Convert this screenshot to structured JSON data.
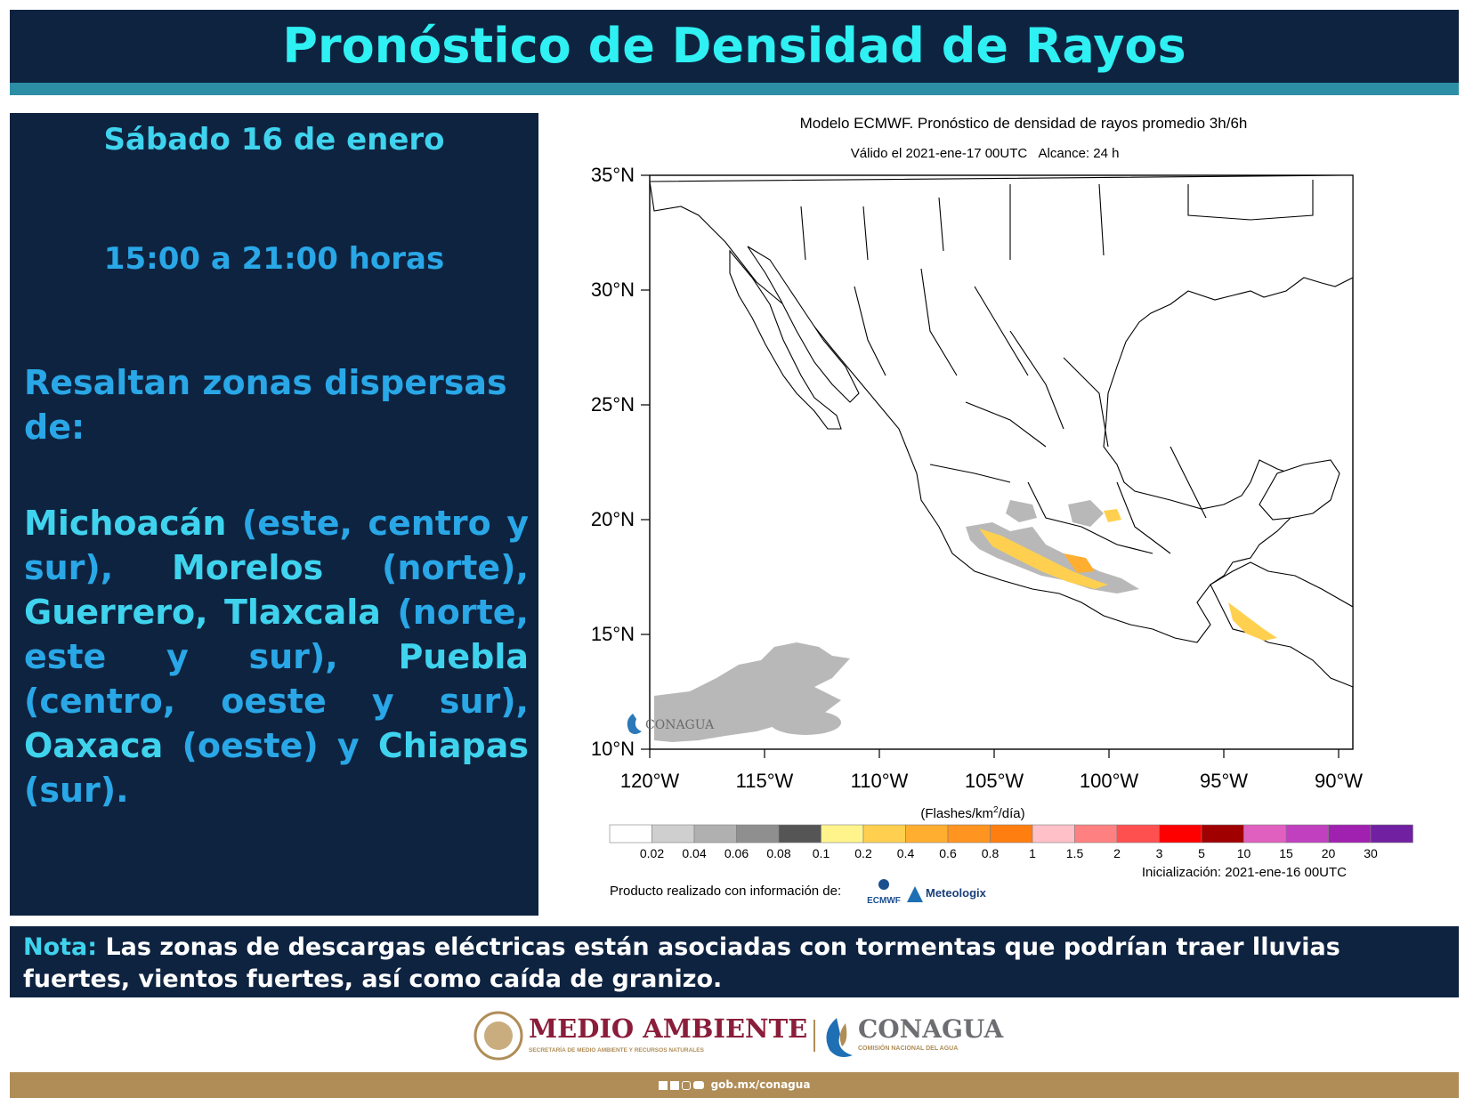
{
  "header": {
    "title": "Pronóstico de Densidad de Rayos"
  },
  "left_panel": {
    "date": "Sábado 16 de enero",
    "hours": "15:00 a 21:00 horas",
    "lead": "Resaltan zonas dispersas de:",
    "regions": [
      {
        "state": "Michoacán",
        "detail": " (este, centro y sur), "
      },
      {
        "state": "Morelos",
        "detail": " (norte), "
      },
      {
        "state": "Guerrero, Tlaxcala",
        "detail": " (norte, este y sur), "
      },
      {
        "state": "Puebla",
        "detail": " (centro, oeste y sur), "
      },
      {
        "state": "Oaxaca",
        "detail": " (oeste) y "
      },
      {
        "state": "Chiapas",
        "detail": " (sur)."
      }
    ]
  },
  "map": {
    "title": "Modelo ECMWF. Pronóstico de densidad de rayos promedio 3h/6h",
    "valid": "Válido el 2021-ene-17 00UTC",
    "range": "Alcance: 24 h",
    "lat_labels": [
      "35°N",
      "30°N",
      "25°N",
      "20°N",
      "15°N",
      "10°N"
    ],
    "lon_labels": [
      "120°W",
      "115°W",
      "110°W",
      "105°W",
      "100°W",
      "95°W",
      "90°W"
    ],
    "units_prefix": "(Flashes/km",
    "units_sup": "2",
    "units_suffix": "/día)",
    "colorbar_labels": [
      "0.02",
      "0.04",
      "0.06",
      "0.08",
      "0.1",
      "0.2",
      "0.4",
      "0.6",
      "0.8",
      "1",
      "1.5",
      "2",
      "3",
      "5",
      "10",
      "15",
      "20",
      "30"
    ],
    "colorbar_colors": [
      "#ffffff",
      "#cfcfcf",
      "#b0b0b0",
      "#8f8f8f",
      "#555555",
      "#fff48c",
      "#ffd050",
      "#ffae30",
      "#ff9420",
      "#ff7e10",
      "#ffc0c8",
      "#ff8080",
      "#ff5050",
      "#ff0000",
      "#a00000",
      "#e060c0",
      "#c040c0",
      "#a020b0",
      "#7020a0"
    ],
    "init": "Inicialización: 2021-ene-16 00UTC",
    "credits": "Producto realizado con información de:",
    "ecmwf_logo": "ECMWF",
    "meteologix_logo": "Meteologix",
    "watermark": "CONAGUA"
  },
  "note": {
    "label": "Nota:",
    "text": " Las zonas de descargas eléctricas están asociadas con tormentas que podrían traer lluvias fuertes, vientos fuertes, así como caída de granizo."
  },
  "logos": {
    "semarnat_title": "MEDIO AMBIENTE",
    "semarnat_sub": "SECRETARÍA DE MEDIO AMBIENTE Y RECURSOS NATURALES",
    "conagua_title": "CONAGUA",
    "conagua_sub": "COMISIÓN NACIONAL DEL AGUA"
  },
  "footer": {
    "url": "gob.mx/conagua",
    "social_icons": [
      "facebook-icon",
      "twitter-icon",
      "instagram-icon",
      "youtube-icon"
    ]
  }
}
